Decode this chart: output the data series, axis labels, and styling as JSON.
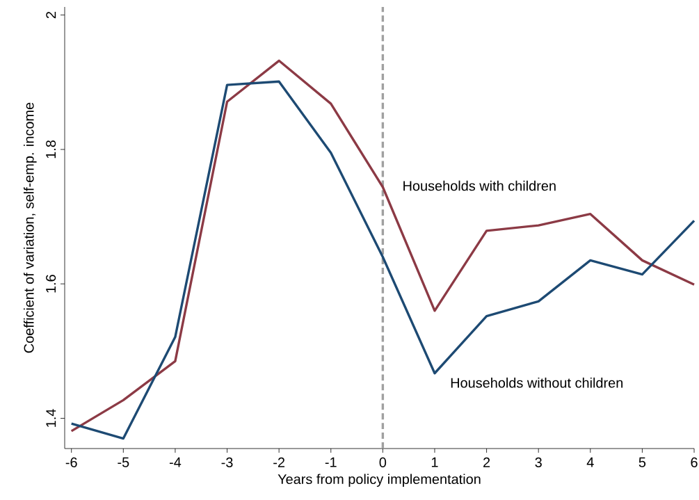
{
  "chart_data": {
    "type": "line",
    "xlabel": "Years from policy implementation",
    "ylabel": "Coefficient of variation, self-emp. income",
    "x": [
      -6,
      -5,
      -4,
      -3,
      -2,
      -1,
      0,
      1,
      2,
      3,
      4,
      5,
      6
    ],
    "series": [
      {
        "name": "Households with children",
        "color": "#8c3a45",
        "values": [
          1.381,
          1.427,
          1.485,
          1.871,
          1.932,
          1.868,
          1.744,
          1.56,
          1.679,
          1.687,
          1.704,
          1.635,
          1.599
        ]
      },
      {
        "name": "Households without children",
        "color": "#1d4a73",
        "values": [
          1.392,
          1.37,
          1.521,
          1.896,
          1.901,
          1.795,
          1.64,
          1.467,
          1.552,
          1.574,
          1.635,
          1.614,
          1.694
        ]
      }
    ],
    "xlim": [
      -6.13,
      6
    ],
    "ylim": [
      1.355,
      2.012
    ],
    "xticks": [
      -6,
      -5,
      -4,
      -3,
      -2,
      -1,
      0,
      1,
      2,
      3,
      4,
      5,
      6
    ],
    "yticks": [
      1.4,
      1.6,
      1.8,
      2
    ],
    "ref_lines": [
      {
        "axis": "x",
        "value": 0,
        "color": "#a0a0a0",
        "line_style": "dashed"
      }
    ]
  }
}
